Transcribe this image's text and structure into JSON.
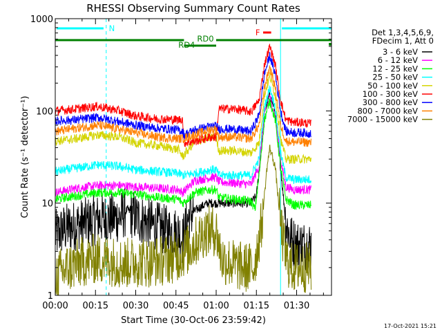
{
  "chart_data": {
    "type": "line",
    "title": "RHESSI Observing Summary Count Rates",
    "ylabel": "Count Rate (s⁻¹ detector⁻¹)",
    "xlabel": "Start Time (30-Oct-06 23:59:42)",
    "xlim_minutes": [
      0,
      103
    ],
    "ylim": [
      1,
      1000
    ],
    "y_scale": "log",
    "x_ticks": [
      {
        "minute": 0,
        "label": "00:00"
      },
      {
        "minute": 15,
        "label": "00:15"
      },
      {
        "minute": 30,
        "label": "00:30"
      },
      {
        "minute": 45,
        "label": "00:45"
      },
      {
        "minute": 60,
        "label": "01:00"
      },
      {
        "minute": 75,
        "label": "01:15"
      },
      {
        "minute": 90,
        "label": "01:30"
      }
    ],
    "y_ticks": [
      {
        "value": 1,
        "label": "1"
      },
      {
        "value": 10,
        "label": "10"
      },
      {
        "value": 100,
        "label": "100"
      },
      {
        "value": 1000,
        "label": "1000"
      }
    ],
    "legend_header": [
      "Det 1,3,4,5,6,9,",
      "FDecim 1, Att 0"
    ],
    "legend_position": "right",
    "annotations": {
      "N": "N",
      "F": "F",
      "RD0": "RD0",
      "RD4": "RD4"
    },
    "timestamp": "17-Oct-2021 15:21",
    "series": [
      {
        "name": "3 - 6 keV",
        "color": "#000000",
        "x": [
          0,
          3,
          8,
          12,
          16,
          20,
          24,
          27,
          30,
          34,
          38,
          42,
          46,
          47.5,
          50,
          54,
          57,
          60,
          63,
          67,
          70,
          73,
          75,
          76.5,
          78,
          80,
          82,
          84,
          86,
          88,
          90,
          92,
          95.5
        ],
        "y": [
          4.5,
          5.2,
          5.8,
          6.2,
          6.7,
          6.8,
          7.0,
          8.5,
          7.0,
          6.2,
          5.5,
          5.0,
          4.8,
          4.0,
          7.5,
          9.0,
          10,
          10,
          10,
          10,
          10,
          10,
          12,
          30,
          100,
          150,
          100,
          25,
          6.0,
          4.0,
          3.5,
          3.5,
          3.5
        ]
      },
      {
        "name": "6 - 12 keV",
        "color": "#ff00ff",
        "x": [
          0,
          8,
          16,
          24,
          30,
          38,
          46,
          47.5,
          52,
          58,
          60,
          61,
          67,
          73,
          76,
          78,
          80,
          82,
          84,
          86,
          89,
          92,
          95.5
        ],
        "y": [
          13,
          14.5,
          15.5,
          15.5,
          15,
          14.5,
          14,
          13,
          17.5,
          19,
          19,
          17,
          16.5,
          16,
          25,
          90,
          140,
          90,
          30,
          15,
          14,
          14,
          14
        ]
      },
      {
        "name": "12 - 25 keV",
        "color": "#00ff00",
        "x": [
          0,
          8,
          16,
          24,
          30,
          38,
          46,
          47.5,
          52,
          58,
          60,
          61,
          67,
          73,
          74.5,
          76,
          78,
          80,
          82,
          84,
          86,
          89,
          92,
          95.5
        ],
        "y": [
          11,
          12,
          13,
          13,
          12.5,
          11.5,
          11,
          10,
          13,
          14,
          14,
          11.5,
          11,
          10.5,
          8.5,
          20,
          80,
          130,
          80,
          25,
          11,
          9.5,
          9.5,
          9.5
        ]
      },
      {
        "name": "25 - 50 keV",
        "color": "#00ffff",
        "x": [
          0,
          8,
          16,
          24,
          30,
          38,
          46,
          47.5,
          52,
          58,
          60,
          61,
          67,
          73,
          76,
          78,
          80,
          82,
          84,
          86,
          89,
          92,
          95.5
        ],
        "y": [
          22,
          24,
          26,
          25,
          23,
          22,
          21,
          20,
          21,
          23,
          23,
          20,
          20,
          20,
          30,
          110,
          180,
          110,
          35,
          19,
          18,
          18,
          18
        ]
      },
      {
        "name": "50 - 100 keV",
        "color": "#d4d400",
        "x": [
          0,
          8,
          16,
          24,
          30,
          38,
          46,
          47.5,
          52,
          58,
          60,
          61,
          67,
          73,
          76,
          78,
          80,
          82,
          84,
          86,
          89,
          92,
          95.5
        ],
        "y": [
          47,
          50,
          55,
          52,
          45,
          42,
          38,
          32,
          46,
          52,
          52,
          37,
          37,
          35,
          45,
          150,
          240,
          150,
          50,
          30,
          30,
          30,
          30
        ]
      },
      {
        "name": "100 - 300 keV",
        "color": "#ff0000",
        "x": [
          0,
          8,
          16,
          24,
          30,
          38,
          46,
          47.5,
          48,
          52,
          58,
          60,
          61,
          67,
          73,
          76,
          78,
          80,
          82,
          84,
          86,
          89,
          92,
          95.5
        ],
        "y": [
          100,
          105,
          112,
          100,
          88,
          82,
          80,
          82,
          45,
          47,
          52,
          52,
          105,
          105,
          98,
          130,
          320,
          500,
          320,
          130,
          80,
          75,
          75,
          72
        ]
      },
      {
        "name": "300 - 800 keV",
        "color": "#0000ff",
        "x": [
          0,
          8,
          16,
          24,
          30,
          38,
          46,
          47.5,
          48,
          52,
          58,
          60,
          61,
          67,
          73,
          76,
          78,
          80,
          82,
          84,
          86,
          89,
          92,
          95.5
        ],
        "y": [
          78,
          80,
          85,
          76,
          70,
          65,
          62,
          60,
          55,
          62,
          68,
          68,
          64,
          63,
          60,
          90,
          250,
          400,
          250,
          100,
          60,
          58,
          58,
          57
        ]
      },
      {
        "name": "800 - 7000 keV",
        "color": "#ff8000",
        "x": [
          0,
          8,
          16,
          24,
          30,
          38,
          46,
          47.5,
          52,
          58,
          60,
          61,
          67,
          73,
          76,
          78,
          80,
          82,
          84,
          86,
          89,
          92,
          95.5
        ],
        "y": [
          60,
          65,
          70,
          63,
          58,
          52,
          50,
          50,
          55,
          63,
          63,
          52,
          52,
          50,
          70,
          180,
          300,
          180,
          70,
          47,
          46,
          46,
          45
        ]
      },
      {
        "name": "7000 - 15000 keV",
        "color": "#808000",
        "x": [
          0,
          5,
          10,
          15,
          20,
          25,
          30,
          35,
          40,
          45,
          50,
          53,
          56,
          60,
          62,
          66,
          70,
          74,
          77,
          79,
          80,
          82,
          84,
          86,
          88,
          91,
          95.5
        ],
        "y": [
          1.6,
          2.0,
          2.3,
          2.5,
          2.4,
          2.2,
          2.3,
          2.3,
          2.4,
          2.6,
          3.2,
          4.0,
          5.0,
          5.0,
          2.5,
          2.2,
          2.0,
          2.0,
          6,
          25,
          40,
          25,
          6,
          2.5,
          2.0,
          2.0,
          2.0
        ]
      }
    ]
  }
}
